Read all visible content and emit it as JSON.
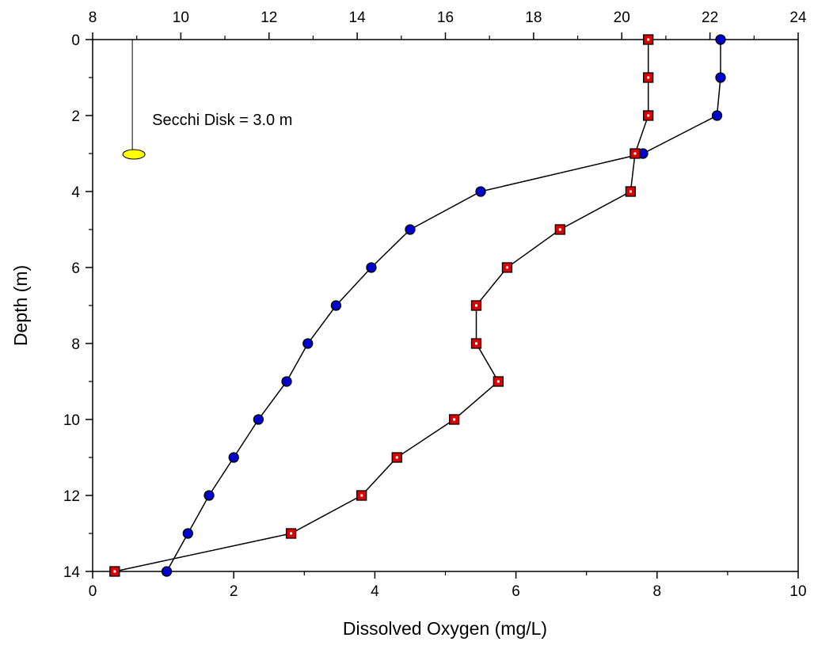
{
  "chart_data": {
    "type": "line",
    "title": "",
    "xlabel": "Dissolved Oxygen (mg/L)",
    "ylabel": "Depth (m)",
    "xlim": [
      0,
      10
    ],
    "x2lim": [
      8,
      24
    ],
    "ylim": [
      0,
      14
    ],
    "y_inverted": true,
    "grid": false,
    "x_ticks": [
      "0",
      "2",
      "4",
      "6",
      "8",
      "10"
    ],
    "x2_ticks": [
      "8",
      "10",
      "12",
      "14",
      "16",
      "18",
      "20",
      "22",
      "24"
    ],
    "y_ticks": [
      "0",
      "2",
      "4",
      "6",
      "8",
      "10",
      "12",
      "14"
    ],
    "annotation": {
      "text": "Secchi Disk = 3.0 m",
      "depth": 3.0,
      "marker_x2": 8.9
    },
    "series": [
      {
        "axis": "bottom",
        "marker": "circle",
        "color": "#0000cc",
        "points": [
          {
            "x": 8.9,
            "y": 0
          },
          {
            "x": 8.9,
            "y": 1
          },
          {
            "x": 8.85,
            "y": 2
          },
          {
            "x": 7.8,
            "y": 3
          },
          {
            "x": 5.5,
            "y": 4
          },
          {
            "x": 4.5,
            "y": 5
          },
          {
            "x": 3.95,
            "y": 6
          },
          {
            "x": 3.45,
            "y": 7
          },
          {
            "x": 3.05,
            "y": 8
          },
          {
            "x": 2.75,
            "y": 9
          },
          {
            "x": 2.35,
            "y": 10
          },
          {
            "x": 2.0,
            "y": 11
          },
          {
            "x": 1.65,
            "y": 12
          },
          {
            "x": 1.35,
            "y": 13
          },
          {
            "x": 1.05,
            "y": 14
          }
        ]
      },
      {
        "axis": "top",
        "marker": "square",
        "color": "#dd0000",
        "points": [
          {
            "x": 20.6,
            "y": 0
          },
          {
            "x": 20.6,
            "y": 1
          },
          {
            "x": 20.6,
            "y": 2
          },
          {
            "x": 20.3,
            "y": 3
          },
          {
            "x": 20.2,
            "y": 4
          },
          {
            "x": 18.6,
            "y": 5
          },
          {
            "x": 17.4,
            "y": 6
          },
          {
            "x": 16.7,
            "y": 7
          },
          {
            "x": 16.7,
            "y": 8
          },
          {
            "x": 17.2,
            "y": 9
          },
          {
            "x": 16.2,
            "y": 10
          },
          {
            "x": 14.9,
            "y": 11
          },
          {
            "x": 14.1,
            "y": 12
          },
          {
            "x": 12.5,
            "y": 13
          },
          {
            "x": 8.5,
            "y": 14
          }
        ]
      }
    ]
  }
}
